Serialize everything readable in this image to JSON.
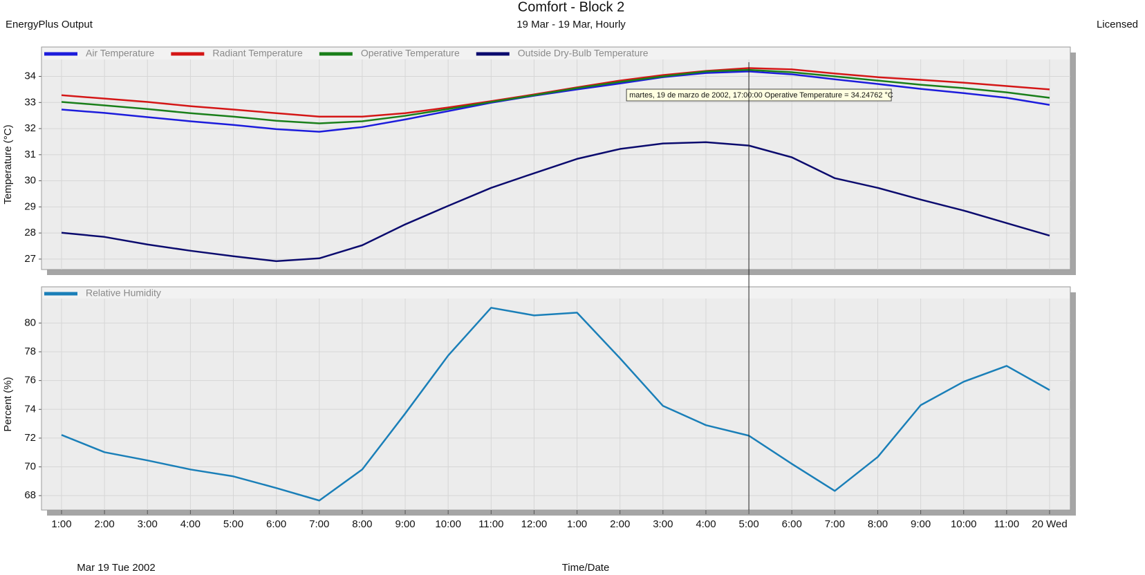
{
  "header": {
    "left": "EnergyPlus Output",
    "title": "Comfort - Block 2",
    "subtitle": "19 Mar - 19 Mar, Hourly",
    "right": "Licensed"
  },
  "chart_data": [
    {
      "type": "line",
      "y_label": "Temperature (°C)",
      "ylim": [
        26.6,
        34.65
      ],
      "yticks": [
        27,
        28,
        29,
        30,
        31,
        32,
        33,
        34
      ],
      "grid": true,
      "annotation": "martes, 19 de marzo de 2002, 17:00:00  Operative Temperature = 34.24762 °C",
      "series": [
        {
          "name": "Air Temperature",
          "color": "#1c1cdc",
          "values": [
            32.73,
            32.6,
            32.44,
            32.28,
            32.14,
            31.98,
            31.88,
            32.06,
            32.35,
            32.67,
            32.99,
            33.26,
            33.5,
            33.73,
            33.97,
            34.13,
            34.19,
            34.08,
            33.89,
            33.71,
            33.52,
            33.36,
            33.18,
            32.91
          ]
        },
        {
          "name": "Radiant Temperature",
          "color": "#d41616",
          "values": [
            33.28,
            33.15,
            33.02,
            32.86,
            32.73,
            32.59,
            32.46,
            32.46,
            32.59,
            32.81,
            33.05,
            33.31,
            33.58,
            33.84,
            34.05,
            34.21,
            34.32,
            34.27,
            34.11,
            33.97,
            33.87,
            33.76,
            33.63,
            33.5
          ]
        },
        {
          "name": "Operative Temperature",
          "color": "#1a7f1a",
          "values": [
            33.02,
            32.89,
            32.75,
            32.59,
            32.46,
            32.3,
            32.2,
            32.28,
            32.49,
            32.75,
            33.02,
            33.28,
            33.55,
            33.79,
            34.0,
            34.19,
            34.25,
            34.16,
            34.0,
            33.84,
            33.68,
            33.55,
            33.39,
            33.18
          ]
        },
        {
          "name": "Outside Dry-Bulb Temperature",
          "color": "#0b0b6e",
          "values": [
            28.01,
            27.85,
            27.56,
            27.32,
            27.11,
            26.92,
            27.03,
            27.53,
            28.33,
            29.04,
            29.73,
            30.29,
            30.84,
            31.22,
            31.43,
            31.48,
            31.35,
            30.9,
            30.1,
            29.73,
            29.28,
            28.86,
            28.38,
            27.9
          ]
        }
      ]
    },
    {
      "type": "line",
      "y_label": "Percent (%)",
      "x_label": "Time/Date",
      "x_date_label": "Mar  19 Tue 2002",
      "categories": [
        "1:00",
        "2:00",
        "3:00",
        "4:00",
        "5:00",
        "6:00",
        "7:00",
        "8:00",
        "9:00",
        "10:00",
        "11:00",
        "12:00",
        "1:00",
        "2:00",
        "3:00",
        "4:00",
        "5:00",
        "6:00",
        "7:00",
        "8:00",
        "9:00",
        "10:00",
        "11:00",
        "20 Wed"
      ],
      "ylim": [
        67,
        81.7
      ],
      "yticks": [
        68,
        70,
        72,
        74,
        76,
        78,
        80
      ],
      "grid": true,
      "series": [
        {
          "name": "Relative Humidity",
          "color": "#1a7fb8",
          "values": [
            72.22,
            71.02,
            70.45,
            69.82,
            69.34,
            68.53,
            67.66,
            69.82,
            73.71,
            77.74,
            81.06,
            80.53,
            80.72,
            77.55,
            74.24,
            72.9,
            72.17,
            70.21,
            68.33,
            70.69,
            74.29,
            75.92,
            77.02,
            75.34
          ]
        }
      ]
    }
  ]
}
